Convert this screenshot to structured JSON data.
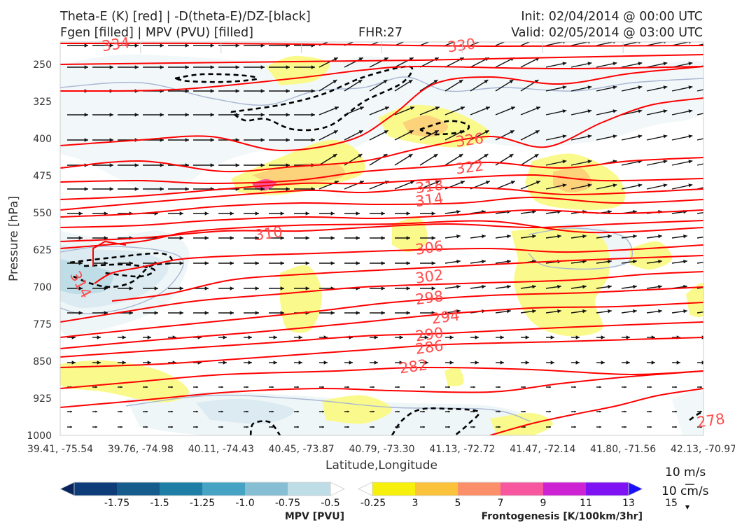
{
  "header": {
    "title_left_1": "Theta-E (K) [red] | -D(theta-E)/DZ-[black]",
    "title_left_2": "Fgen [filled] | MPV (PVU) [filled]",
    "fhr": "FHR:27",
    "init": "Init: 02/04/2014 @ 00:00 UTC",
    "valid": "Valid: 02/05/2014 @ 03:00 UTC"
  },
  "chart_data": {
    "type": "cross-section",
    "xlabel": "Latitude,Longitude",
    "ylabel": "Pressure [hPa]",
    "x_ticks": [
      "39.41, -75.54",
      "39.76, -74.98",
      "40.11, -74.43",
      "40.45, -73.87",
      "40.79, -73.30",
      "41.13, -72.72",
      "41.47, -72.14",
      "41.80, -71.56",
      "42.13, -70.97"
    ],
    "y_ticks": [
      250,
      325,
      400,
      475,
      550,
      625,
      700,
      775,
      850,
      925,
      1000
    ],
    "ylim": [
      1000,
      205
    ],
    "theta_e": {
      "color": "#ff0000",
      "levels": [
        278,
        282,
        286,
        290,
        294,
        298,
        302,
        306,
        310,
        314,
        318,
        322,
        326,
        330,
        334
      ],
      "labels": [
        {
          "text": "330",
          "x": 5.0,
          "p": 212
        },
        {
          "text": "334",
          "x": 0.7,
          "p": 210
        },
        {
          "text": "326",
          "x": 5.1,
          "p": 403
        },
        {
          "text": "322",
          "x": 5.1,
          "p": 458
        },
        {
          "text": "318",
          "x": 4.6,
          "p": 497
        },
        {
          "text": "314",
          "x": 4.6,
          "p": 524
        },
        {
          "text": "310",
          "x": 2.6,
          "p": 592
        },
        {
          "text": "306",
          "x": 4.6,
          "p": 621
        },
        {
          "text": "302",
          "x": 4.6,
          "p": 679
        },
        {
          "text": "298",
          "x": 4.6,
          "p": 722
        },
        {
          "text": "294",
          "x": 4.8,
          "p": 761
        },
        {
          "text": "290",
          "x": 4.6,
          "p": 796
        },
        {
          "text": "286",
          "x": 4.6,
          "p": 822
        },
        {
          "text": "282",
          "x": 4.4,
          "p": 861
        },
        {
          "text": "278",
          "x": 8.1,
          "p": 970
        },
        {
          "text": "314",
          "x": 0.2,
          "p": 690
        }
      ]
    },
    "vector_scale": {
      "label_1": "10 m/s",
      "label_2": "10 cm/s"
    },
    "mpv_colorbar": {
      "title": "MPV [PVU]",
      "ticks": [
        "-1.75",
        "-1.5",
        "-1.25",
        "-1.0",
        "-0.75",
        "-0.5",
        "-0.25"
      ],
      "colors": [
        "#08245e",
        "#0d3c78",
        "#155c8c",
        "#1f7ea6",
        "#47a3c4",
        "#86bfd3",
        "#bedde6",
        "#ffffff"
      ]
    },
    "fgen_colorbar": {
      "title": "Frontogenesis [K/100km/3hr]",
      "ticks": [
        "3",
        "5",
        "7",
        "9",
        "11",
        "13",
        "15"
      ],
      "colors": [
        "#ffffff",
        "#f6f00c",
        "#fbc23c",
        "#fa8f6a",
        "#f7579f",
        "#ce23d3",
        "#7e12f2",
        "#1c10f8"
      ]
    }
  }
}
